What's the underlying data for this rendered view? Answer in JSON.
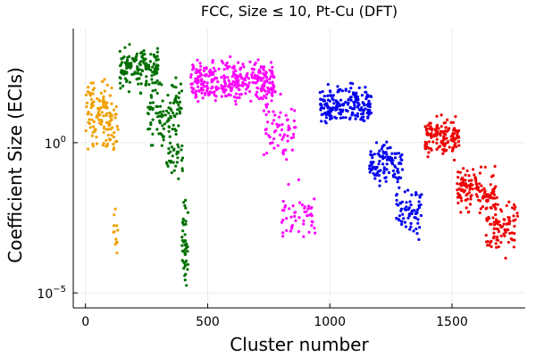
{
  "chart_data": {
    "type": "scatter",
    "title": "FCC, Size ≤ 10, Pt-Cu (DFT)",
    "xlabel": "Cluster number",
    "ylabel": "Coefficient Size (ECIs)",
    "xlim": [
      -50,
      1800
    ],
    "ylim_log10": [
      -5.5,
      3.8
    ],
    "y_scale": "log10",
    "x_ticks": [
      {
        "value": 0,
        "label": "0"
      },
      {
        "value": 500,
        "label": "500"
      },
      {
        "value": 1000,
        "label": "1000"
      },
      {
        "value": 1500,
        "label": "1500"
      }
    ],
    "y_ticks": [
      {
        "value_log10": 0,
        "base": "10",
        "exp": "0"
      },
      {
        "value_log10": -5,
        "base": "10",
        "exp": "−5"
      }
    ],
    "grid": true,
    "legend": "none",
    "series": [
      {
        "color": "#f0a000",
        "x_range": [
          0,
          135
        ],
        "y_log10_ranges": [
          {
            "x_from": 0,
            "x_to": 110,
            "lo": -0.6,
            "hi": 2.5,
            "count": 110
          },
          {
            "x_from": 90,
            "x_to": 135,
            "lo": -0.8,
            "hi": 1.8,
            "count": 25
          },
          {
            "x_from": 110,
            "x_to": 135,
            "lo": -4.1,
            "hi": -2.0,
            "count": 12
          }
        ]
      },
      {
        "color": "#007000",
        "x_range": [
          135,
          420
        ],
        "y_log10_ranges": [
          {
            "x_from": 140,
            "x_to": 300,
            "lo": 1.5,
            "hi": 3.5,
            "count": 150
          },
          {
            "x_from": 250,
            "x_to": 395,
            "lo": -0.5,
            "hi": 2.5,
            "count": 110
          },
          {
            "x_from": 330,
            "x_to": 400,
            "lo": -1.5,
            "hi": 0.5,
            "count": 30
          },
          {
            "x_from": 395,
            "x_to": 420,
            "lo": -5.3,
            "hi": -1.5,
            "count": 45
          }
        ]
      },
      {
        "color": "#ff00ff",
        "x_range": [
          430,
          950
        ],
        "y_log10_ranges": [
          {
            "x_from": 430,
            "x_to": 780,
            "lo": 1.0,
            "hi": 3.0,
            "count": 330
          },
          {
            "x_from": 730,
            "x_to": 860,
            "lo": -1.0,
            "hi": 1.8,
            "count": 60
          },
          {
            "x_from": 800,
            "x_to": 940,
            "lo": -4.0,
            "hi": -1.0,
            "count": 50
          }
        ]
      },
      {
        "color": "#0000ee",
        "x_range": [
          960,
          1380
        ],
        "y_log10_ranges": [
          {
            "x_from": 960,
            "x_to": 1170,
            "lo": 0.4,
            "hi": 2.2,
            "count": 200
          },
          {
            "x_from": 1160,
            "x_to": 1300,
            "lo": -1.8,
            "hi": 0.3,
            "count": 110
          },
          {
            "x_from": 1270,
            "x_to": 1380,
            "lo": -3.5,
            "hi": -1.0,
            "count": 70
          }
        ]
      },
      {
        "color": "#ee0000",
        "x_range": [
          1390,
          1770
        ],
        "y_log10_ranges": [
          {
            "x_from": 1390,
            "x_to": 1530,
            "lo": -0.7,
            "hi": 1.1,
            "count": 140
          },
          {
            "x_from": 1520,
            "x_to": 1680,
            "lo": -2.6,
            "hi": -0.6,
            "count": 130
          },
          {
            "x_from": 1640,
            "x_to": 1770,
            "lo": -4.0,
            "hi": -1.5,
            "count": 90
          }
        ]
      }
    ]
  }
}
